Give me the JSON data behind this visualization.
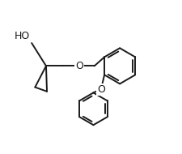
{
  "background": "#ffffff",
  "line_color": "#1a1a1a",
  "line_width": 1.4,
  "font_size": 9,
  "label_color": "#1a1a1a",
  "HO_label": "HO",
  "O_label": "O",
  "O2_label": "O"
}
